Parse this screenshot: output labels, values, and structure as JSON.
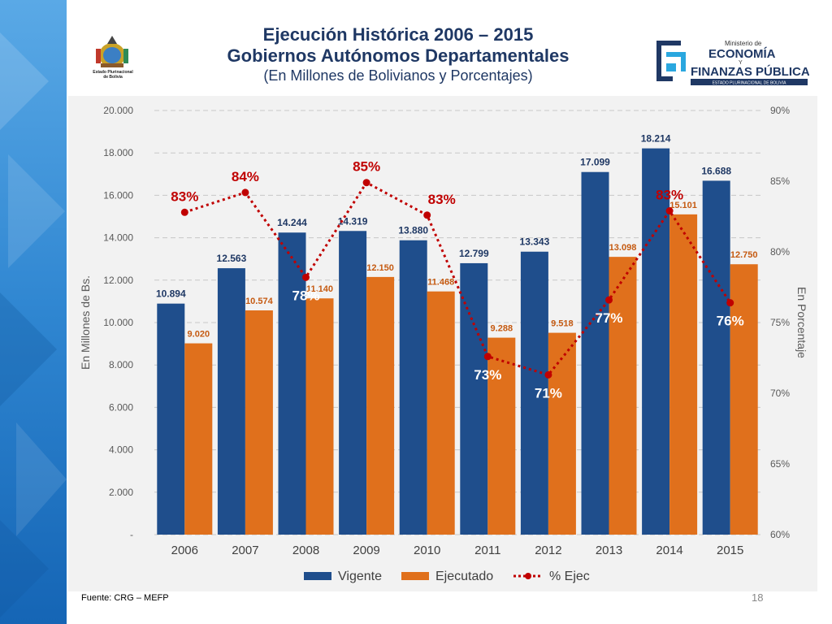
{
  "title": {
    "line1": "Ejecución Histórica 2006 – 2015",
    "line2": "Gobiernos Autónomos Departamentales",
    "line3": "(En Millones de Bolivianos y Porcentajes)"
  },
  "seal": {
    "caption_line1": "Estado Plurinacional",
    "caption_line2": "de Bolivia"
  },
  "ministry": {
    "line1": "Ministerio de",
    "line2": "ECONOMÍA",
    "line3": "Y",
    "line4": "FINANZAS PÚBLICAS",
    "line5": "ESTADO PLURINACIONAL DE BOLIVIA"
  },
  "footer": {
    "source": "Fuente: CRG – MEFP",
    "page": "18"
  },
  "colors": {
    "vigente": "#1f4e8c",
    "ejecutado": "#e0701c",
    "ejec_line": "#c00000",
    "label_vigente": "#1f3864",
    "label_ejecutado": "#c55a11",
    "axis_text": "#595959",
    "side_band": "#2a7fc9"
  },
  "chart_data": {
    "type": "bar",
    "categories": [
      "2006",
      "2007",
      "2008",
      "2009",
      "2010",
      "2011",
      "2012",
      "2013",
      "2014",
      "2015"
    ],
    "series": [
      {
        "name": "Vigente",
        "type": "bar",
        "axis": "left",
        "values": [
          10894,
          12563,
          14244,
          14319,
          13880,
          12799,
          13343,
          17099,
          18214,
          16688
        ],
        "labels": [
          "10.894",
          "12.563",
          "14.244",
          "14.319",
          "13.880",
          "12.799",
          "13.343",
          "17.099",
          "18.214",
          "16.688"
        ]
      },
      {
        "name": "Ejecutado",
        "type": "bar",
        "axis": "left",
        "values": [
          9020,
          10574,
          11140,
          12150,
          11468,
          9288,
          9518,
          13098,
          15101,
          12750
        ],
        "labels": [
          "9.020",
          "10.574",
          "11.140",
          "12.150",
          "11.468",
          "9.288",
          "9.518",
          "13.098",
          "15.101",
          "12.750"
        ]
      },
      {
        "name": "% Ejec",
        "type": "line",
        "axis": "right",
        "values": [
          82.8,
          84.2,
          78.2,
          84.9,
          82.6,
          72.6,
          71.3,
          76.6,
          82.9,
          76.4
        ],
        "labels": [
          "83%",
          "84%",
          "78%",
          "85%",
          "83%",
          "73%",
          "71%",
          "77%",
          "83%",
          "76%"
        ]
      }
    ],
    "ylabel": "En Millones de Bs.",
    "y2label": "En Porcentaje",
    "ylim": [
      0,
      20000
    ],
    "y2lim": [
      60,
      90
    ],
    "yticks": [
      0,
      2000,
      4000,
      6000,
      8000,
      10000,
      12000,
      14000,
      16000,
      18000,
      20000
    ],
    "ytick_labels": [
      "-",
      "2.000",
      "4.000",
      "6.000",
      "8.000",
      "10.000",
      "12.000",
      "14.000",
      "16.000",
      "18.000",
      "20.000"
    ],
    "y2ticks": [
      60,
      65,
      70,
      75,
      80,
      85,
      90
    ],
    "y2tick_labels": [
      "60%",
      "65%",
      "70%",
      "75%",
      "80%",
      "85%",
      "90%"
    ],
    "grid": true,
    "legend": "bottom"
  }
}
